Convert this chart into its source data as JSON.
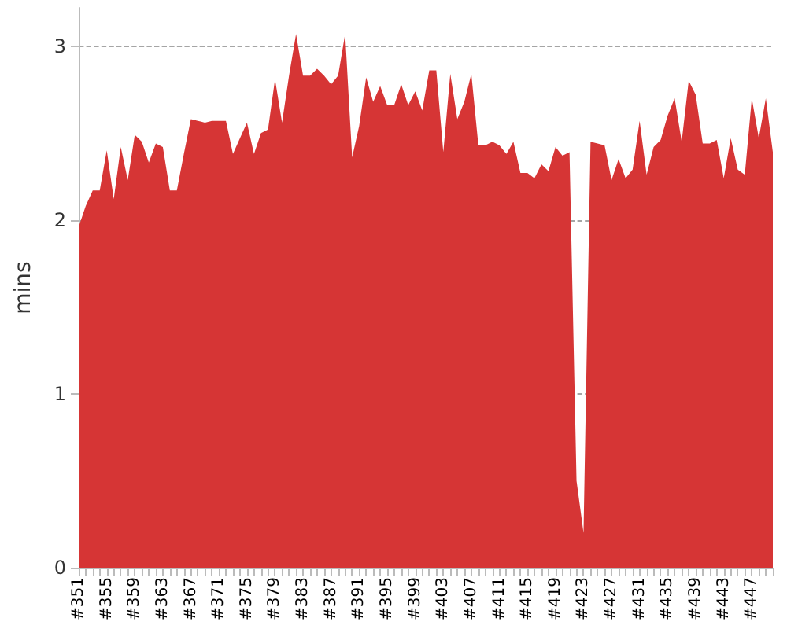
{
  "chart_data": {
    "type": "area",
    "ylabel": "mins",
    "categories": [
      "#351",
      null,
      null,
      null,
      "#355",
      null,
      null,
      null,
      "#359",
      null,
      null,
      null,
      "#363",
      null,
      null,
      null,
      "#367",
      null,
      null,
      null,
      "#371",
      null,
      null,
      null,
      "#375",
      null,
      null,
      null,
      "#379",
      null,
      null,
      null,
      "#383",
      null,
      null,
      null,
      "#387",
      null,
      null,
      null,
      "#391",
      null,
      null,
      null,
      "#395",
      null,
      null,
      null,
      "#399",
      null,
      null,
      null,
      "#403",
      null,
      null,
      null,
      "#407",
      null,
      null,
      null,
      "#411",
      null,
      null,
      null,
      "#415",
      null,
      null,
      null,
      "#419",
      null,
      null,
      null,
      "#423",
      null,
      null,
      null,
      "#427",
      null,
      null,
      null,
      "#431",
      null,
      null,
      null,
      "#435",
      null,
      null,
      null,
      "#439",
      null,
      null,
      null,
      "#443",
      null,
      null,
      null,
      "#447",
      null,
      null,
      null
    ],
    "values": [
      1.96,
      2.08,
      2.17,
      2.17,
      2.4,
      2.12,
      2.42,
      2.23,
      2.49,
      2.45,
      2.33,
      2.44,
      2.42,
      2.17,
      2.17,
      2.38,
      2.58,
      2.57,
      2.56,
      2.57,
      2.57,
      2.57,
      2.38,
      2.47,
      2.56,
      2.38,
      2.5,
      2.52,
      2.81,
      2.56,
      2.83,
      3.07,
      2.83,
      2.83,
      2.87,
      2.83,
      2.78,
      2.83,
      3.07,
      2.36,
      2.54,
      2.82,
      2.68,
      2.77,
      2.66,
      2.66,
      2.78,
      2.66,
      2.74,
      2.63,
      2.86,
      2.86,
      2.39,
      2.84,
      2.58,
      2.68,
      2.84,
      2.43,
      2.43,
      2.45,
      2.43,
      2.38,
      2.45,
      2.27,
      2.27,
      2.24,
      2.32,
      2.28,
      2.42,
      2.37,
      2.39,
      0.5,
      0.2,
      2.45,
      2.44,
      2.43,
      2.23,
      2.35,
      2.24,
      2.29,
      2.57,
      2.26,
      2.42,
      2.46,
      2.6,
      2.7,
      2.45,
      2.8,
      2.72,
      2.44,
      2.44,
      2.46,
      2.24,
      2.47,
      2.29,
      2.26,
      2.7,
      2.47,
      2.7,
      2.39
    ],
    "color": "#d63535",
    "ylim": [
      0,
      3.22
    ],
    "yticks": [
      0,
      1,
      2,
      3
    ],
    "grid": "y",
    "marker": "none"
  }
}
